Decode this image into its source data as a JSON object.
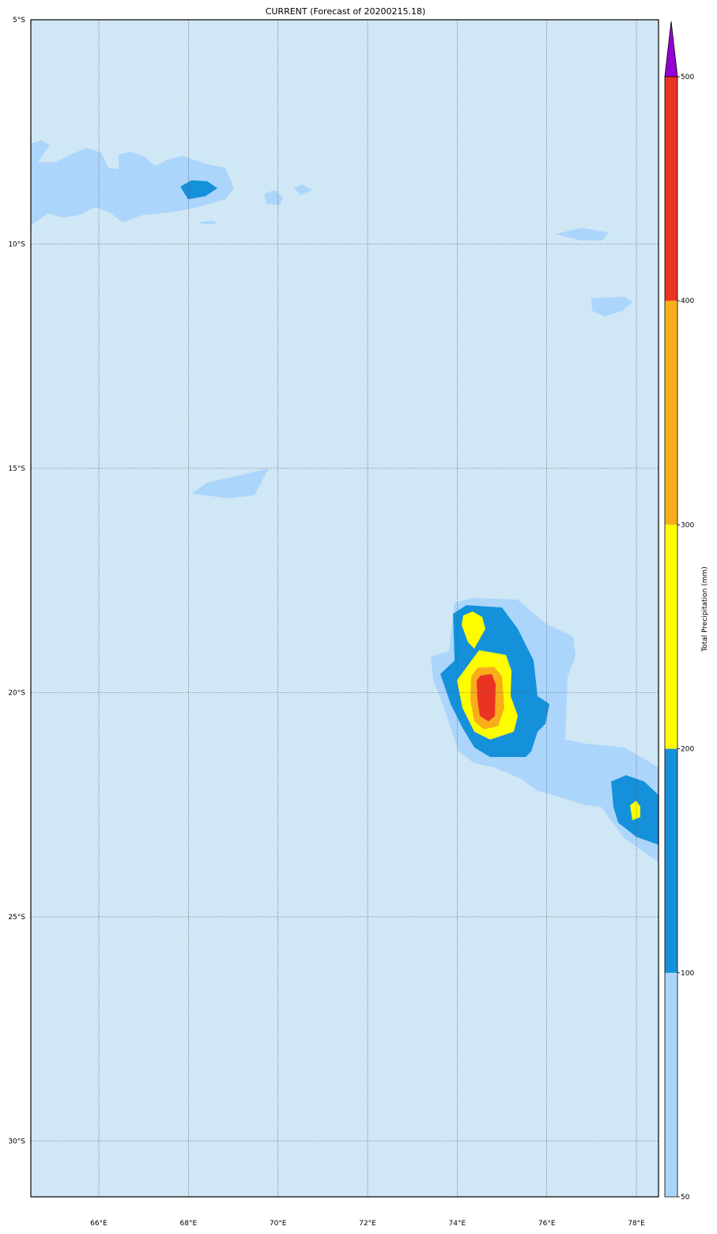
{
  "title": "CURRENT (Forecast of 20200215.18)",
  "map": {
    "lon_range_deg_e": [
      64.5,
      78.5
    ],
    "lat_range_deg_s": [
      5,
      31.25
    ],
    "lon_ticks": [
      "66°E",
      "68°E",
      "70°E",
      "72°E",
      "74°E",
      "76°E",
      "78°E"
    ],
    "lat_ticks": [
      "5°S",
      "10°S",
      "15°S",
      "20°S",
      "25°S",
      "30°S"
    ],
    "background_color": "#d0e7f6"
  },
  "colorbar": {
    "label": "Total Precipitation (mm)",
    "ticks": [
      "50",
      "100",
      "200",
      "300",
      "400",
      "500"
    ],
    "levels": [
      50,
      100,
      200,
      300,
      400,
      500
    ],
    "colors": [
      "#acd5fb",
      "#1591db",
      "#fdfd00",
      "#f9ad1b",
      "#ea3323"
    ],
    "extend_max_color": "#9400d3"
  }
}
